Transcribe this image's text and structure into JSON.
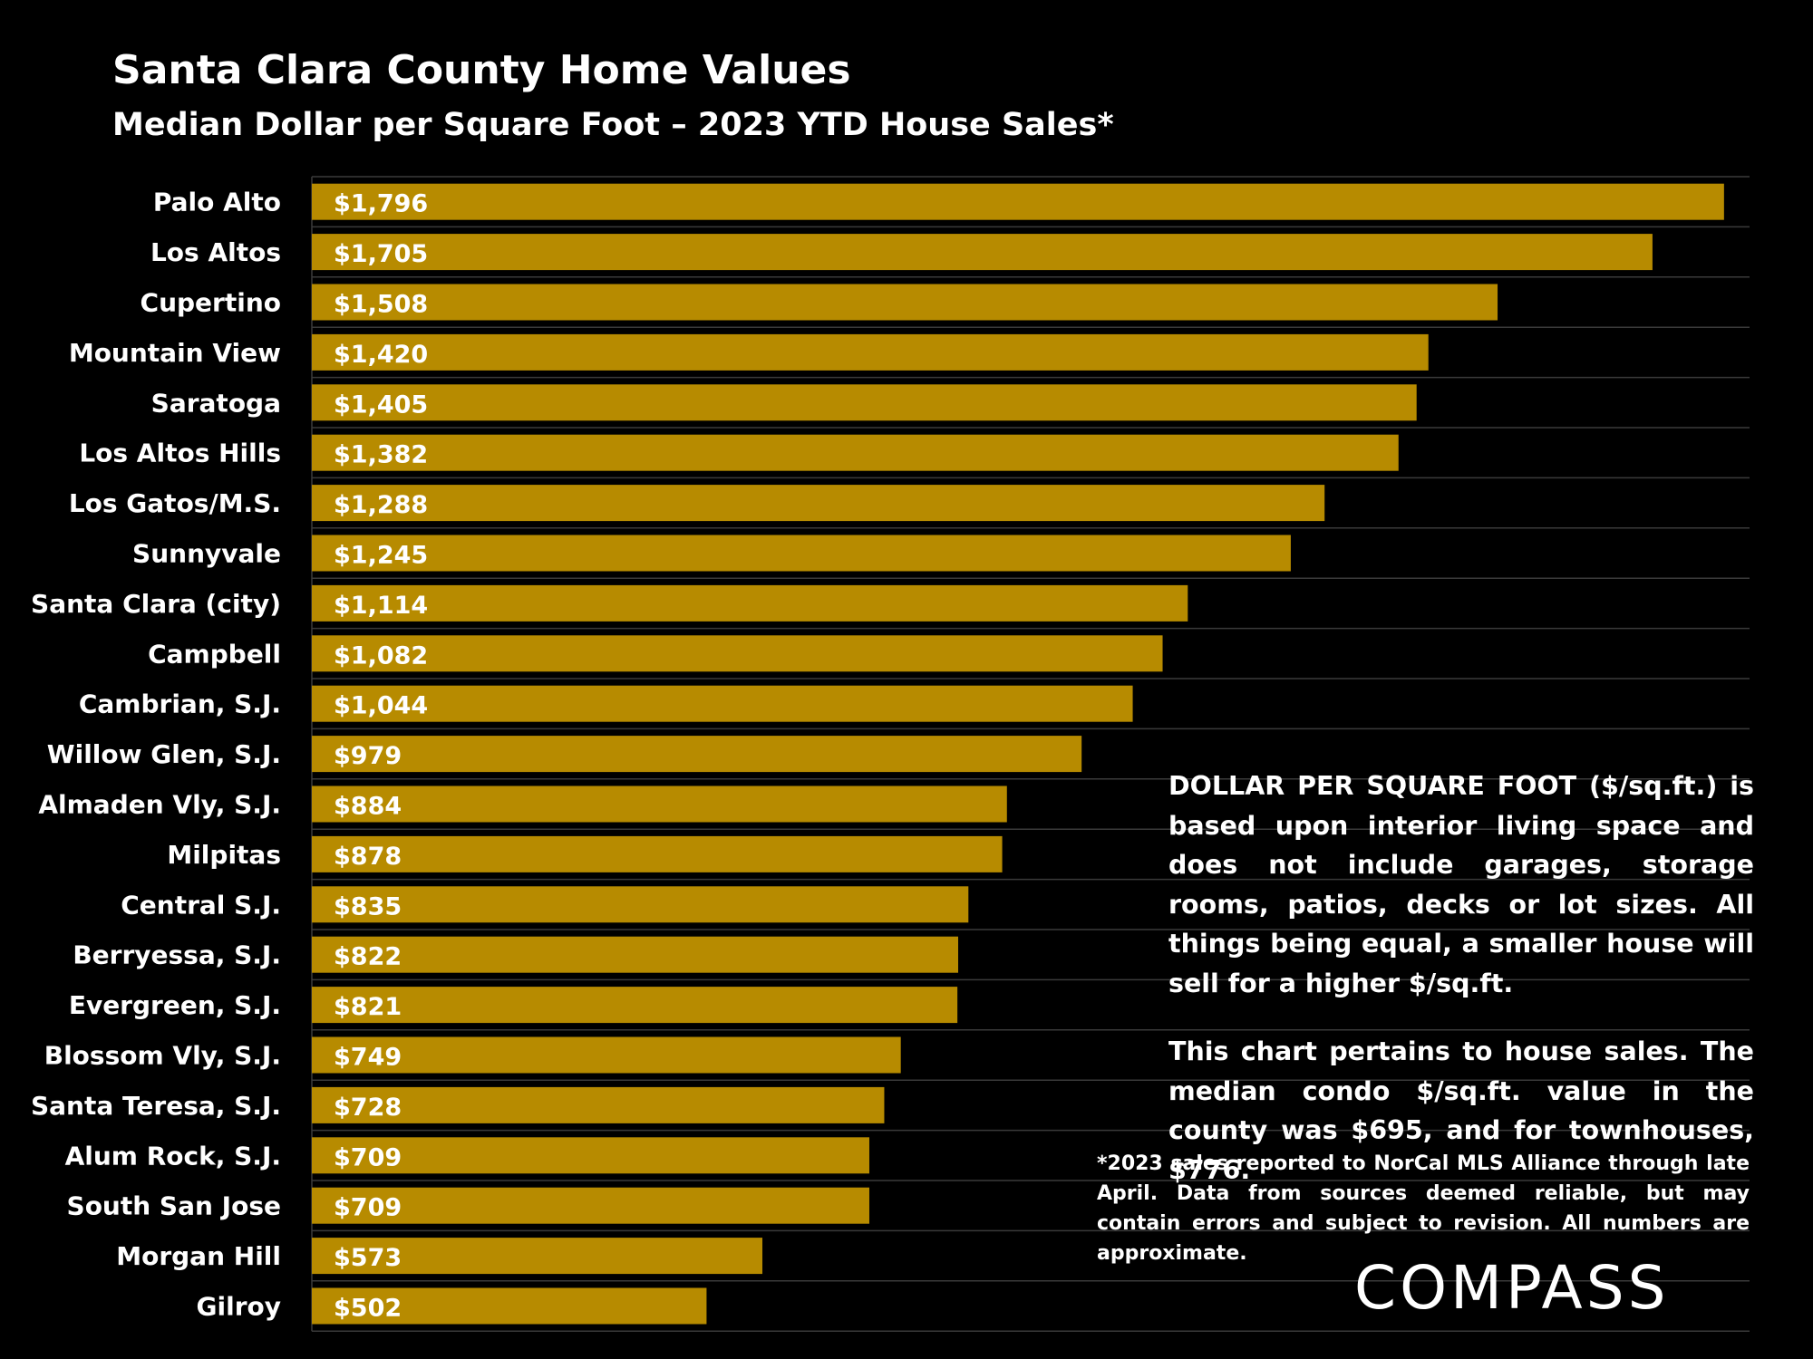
{
  "title": "Santa Clara County Home Values",
  "subtitle": "Median Dollar per Square Foot – 2023 YTD House Sales*",
  "note": {
    "p1": "DOLLAR PER SQUARE FOOT ($/sq.ft.) is based upon interior living space and does not include garages, storage rooms, patios, decks or lot sizes. All things being equal, a smaller house will sell for a higher $/sq.ft.",
    "p2": "This chart pertains to house sales. The median condo $/sq.ft. value in the county was $695, and for townhouses, $776."
  },
  "footnote": "*2023 sales reported to NorCal MLS Alliance through late April. Data from sources deemed reliable, but may contain errors and subject to revision. All numbers are approximate.",
  "logo": {
    "text": "COMPASS"
  },
  "colors": {
    "background": "#000000",
    "bar": "#b78b00",
    "text": "#ffffff",
    "gridline": "#3a3a3a"
  },
  "chart_data": {
    "type": "bar",
    "orientation": "horizontal",
    "categories": [
      "Palo Alto",
      "Los Altos",
      "Cupertino",
      "Mountain View",
      "Saratoga",
      "Los Altos Hills",
      "Los Gatos/M.S.",
      "Sunnyvale",
      "Santa Clara (city)",
      "Campbell",
      "Cambrian, S.J.",
      "Willow Glen, S.J.",
      "Almaden Vly, S.J.",
      "Milpitas",
      "Central S.J.",
      "Berryessa, S.J.",
      "Evergreen, S.J.",
      "Blossom Vly, S.J.",
      "Santa Teresa, S.J.",
      "Alum Rock, S.J.",
      "South San Jose",
      "Morgan Hill",
      "Gilroy"
    ],
    "values": [
      1796,
      1705,
      1508,
      1420,
      1405,
      1382,
      1288,
      1245,
      1114,
      1082,
      1044,
      979,
      884,
      878,
      835,
      822,
      821,
      749,
      728,
      709,
      709,
      573,
      502
    ],
    "value_labels": [
      "$1,796",
      "$1,705",
      "$1,508",
      "$1,420",
      "$1,405",
      "$1,382",
      "$1,288",
      "$1,245",
      "$1,114",
      "$1,082",
      "$1,044",
      "$979",
      "$884",
      "$878",
      "$835",
      "$822",
      "$821",
      "$749",
      "$728",
      "$709",
      "$709",
      "$573",
      "$502"
    ],
    "xlim": [
      0,
      1810
    ],
    "grid": "horizontal row separators",
    "legend": "none"
  }
}
